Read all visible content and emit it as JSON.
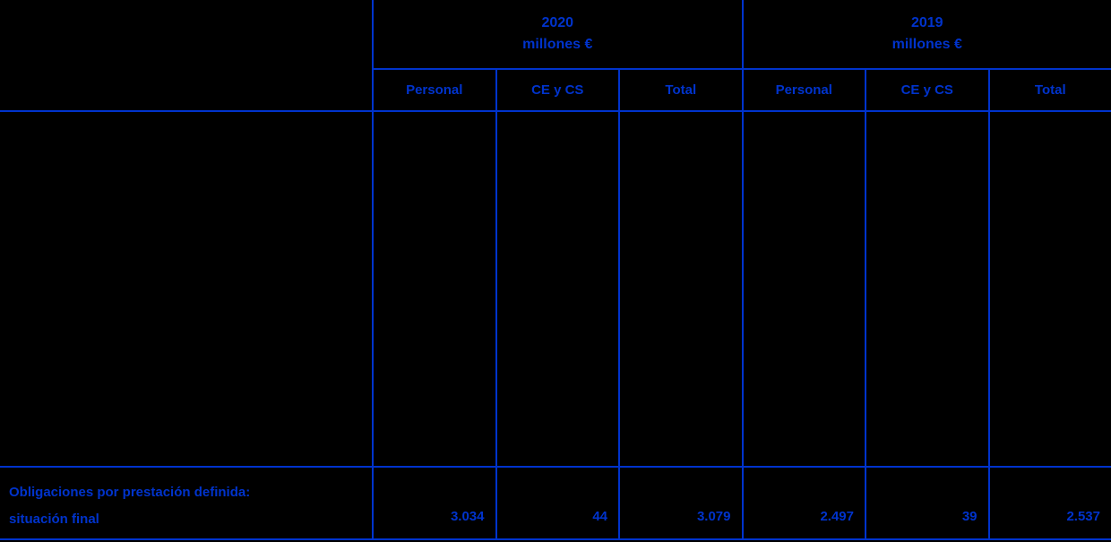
{
  "colors": {
    "background": "#000000",
    "accent": "#0033CC"
  },
  "table": {
    "groups": [
      {
        "year": "2020",
        "unit": "millones €"
      },
      {
        "year": "2019",
        "unit": "millones €"
      }
    ],
    "columns": [
      "Personal",
      "CE y CS",
      "Total",
      "Personal",
      "CE y CS",
      "Total"
    ],
    "final_row": {
      "label_line1": "Obligaciones por prestación definida:",
      "label_line2": "situación final",
      "values": [
        "3.034",
        "44",
        "3.079",
        "2.497",
        "39",
        "2.537"
      ]
    }
  }
}
